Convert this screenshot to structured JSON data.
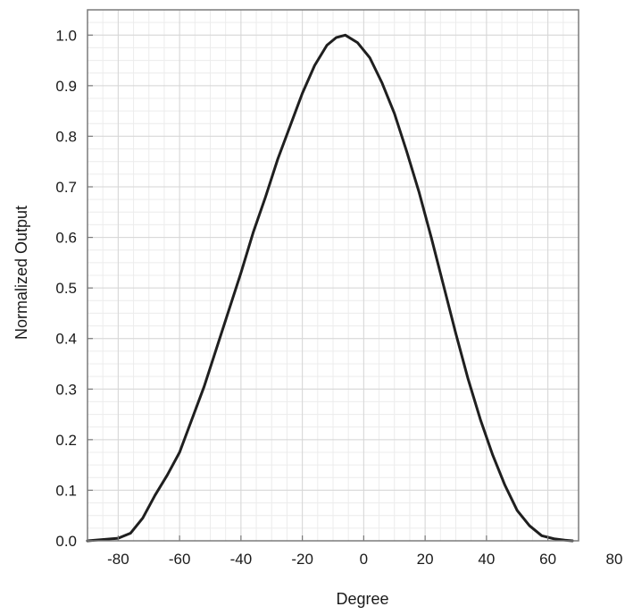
{
  "chart_data": {
    "type": "line",
    "title": "",
    "xlabel": "Degree",
    "ylabel": "Normalized Output",
    "xlim": [
      -90,
      70
    ],
    "ylim": [
      0,
      1.05
    ],
    "grid": true,
    "x_ticks": [
      -80,
      -60,
      -40,
      -20,
      0,
      20,
      40,
      60,
      80
    ],
    "y_ticks": [
      0.0,
      0.1,
      0.2,
      0.3,
      0.4,
      0.5,
      0.6,
      0.7,
      0.8,
      0.9,
      1.0
    ],
    "x_tick_labels": [
      "-80",
      "-60",
      "-40",
      "-20",
      "0",
      "20",
      "40",
      "60",
      "80"
    ],
    "y_tick_labels": [
      "0.0",
      "0.1",
      "0.2",
      "0.3",
      "0.4",
      "0.5",
      "0.6",
      "0.7",
      "0.8",
      "0.9",
      "1.0"
    ],
    "series": [
      {
        "color": "#1f1f1f",
        "x": [
          -90,
          -80,
          -76,
          -72,
          -68,
          -64,
          -60,
          -56,
          -52,
          -48,
          -44,
          -40,
          -36,
          -32,
          -28,
          -24,
          -20,
          -16,
          -12,
          -9,
          -6,
          -2,
          2,
          6,
          10,
          14,
          18,
          22,
          26,
          30,
          34,
          38,
          42,
          46,
          50,
          54,
          58,
          62,
          66,
          68
        ],
        "y": [
          0.0,
          0.005,
          0.015,
          0.045,
          0.09,
          0.13,
          0.175,
          0.24,
          0.305,
          0.38,
          0.455,
          0.53,
          0.61,
          0.68,
          0.755,
          0.82,
          0.885,
          0.94,
          0.98,
          0.995,
          1.0,
          0.985,
          0.955,
          0.905,
          0.845,
          0.77,
          0.69,
          0.6,
          0.505,
          0.41,
          0.32,
          0.24,
          0.17,
          0.11,
          0.06,
          0.03,
          0.01,
          0.004,
          0.001,
          0.0
        ]
      }
    ]
  }
}
